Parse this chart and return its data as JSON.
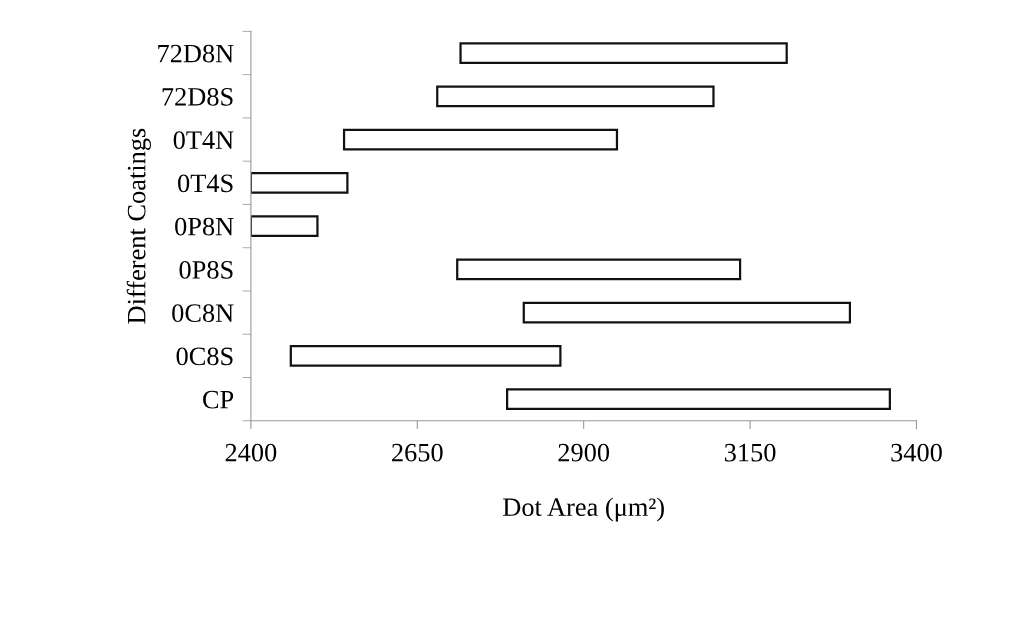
{
  "chart_data": {
    "type": "bar",
    "orientation": "horizontal",
    "categories": [
      "72D8N",
      "72D8S",
      "0T4N",
      "0T4S",
      "0P8N",
      "0P8S",
      "0C8N",
      "0C8S",
      "CP"
    ],
    "base": [
      2715,
      2680,
      2540,
      2400,
      2400,
      2710,
      2810,
      2460,
      2785
    ],
    "values": [
      490,
      415,
      410,
      145,
      100,
      425,
      490,
      405,
      575
    ],
    "color": "#ffffff",
    "xlim": [
      2400,
      3400
    ],
    "xticks": [
      2400,
      2650,
      2900,
      3150,
      3400
    ],
    "xlabel": "Dot Area (μm²)",
    "ylabel": "Different Coatings",
    "grid": false
  }
}
